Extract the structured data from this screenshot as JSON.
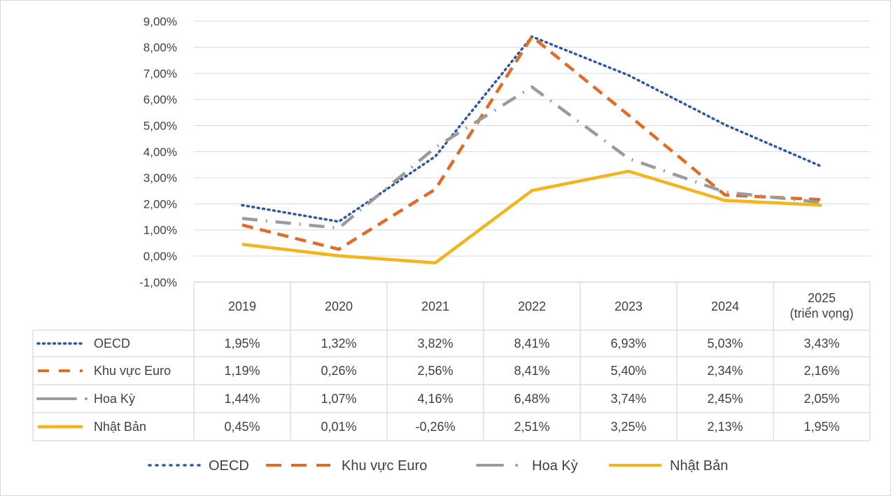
{
  "chart_data": {
    "type": "line",
    "categories": [
      "2019",
      "2020",
      "2021",
      "2022",
      "2023",
      "2024",
      "2025\n(triển vọng)"
    ],
    "category_lines": [
      [
        "2019"
      ],
      [
        "2020"
      ],
      [
        "2021"
      ],
      [
        "2022"
      ],
      [
        "2023"
      ],
      [
        "2024"
      ],
      [
        "2025",
        "(triển vọng)"
      ]
    ],
    "ylim": [
      -1,
      9
    ],
    "y_ticks": [
      "-1,00%",
      "0,00%",
      "1,00%",
      "2,00%",
      "3,00%",
      "4,00%",
      "5,00%",
      "6,00%",
      "7,00%",
      "8,00%",
      "9,00%"
    ],
    "grid": true,
    "legend_position": "bottom",
    "data_table": true,
    "series": [
      {
        "name": "OECD",
        "style": "dotted",
        "color": "#2e56a6",
        "values": [
          1.95,
          1.32,
          3.82,
          8.41,
          6.93,
          5.03,
          3.43
        ],
        "labels": [
          "1,95%",
          "1,32%",
          "3,82%",
          "8,41%",
          "6,93%",
          "5,03%",
          "3,43%"
        ]
      },
      {
        "name": "Khu vực Euro",
        "style": "dashed",
        "color": "#e26b25",
        "values": [
          1.19,
          0.26,
          2.56,
          8.41,
          5.4,
          2.34,
          2.16
        ],
        "labels": [
          "1,19%",
          "0,26%",
          "2,56%",
          "8,41%",
          "5,40%",
          "2,34%",
          "2,16%"
        ]
      },
      {
        "name": "Hoa Kỳ",
        "style": "dash-dot",
        "color": "#9b9b9b",
        "values": [
          1.44,
          1.07,
          4.16,
          6.48,
          3.74,
          2.45,
          2.05
        ],
        "labels": [
          "1,44%",
          "1,07%",
          "4,16%",
          "6,48%",
          "3,74%",
          "2,45%",
          "2,05%"
        ]
      },
      {
        "name": "Nhật Bản",
        "style": "solid",
        "color": "#f3b41c",
        "values": [
          0.45,
          0.01,
          -0.26,
          2.51,
          3.25,
          2.13,
          1.95
        ],
        "labels": [
          "0,45%",
          "0,01%",
          "-0,26%",
          "2,51%",
          "3,25%",
          "2,13%",
          "1,95%"
        ]
      }
    ]
  }
}
